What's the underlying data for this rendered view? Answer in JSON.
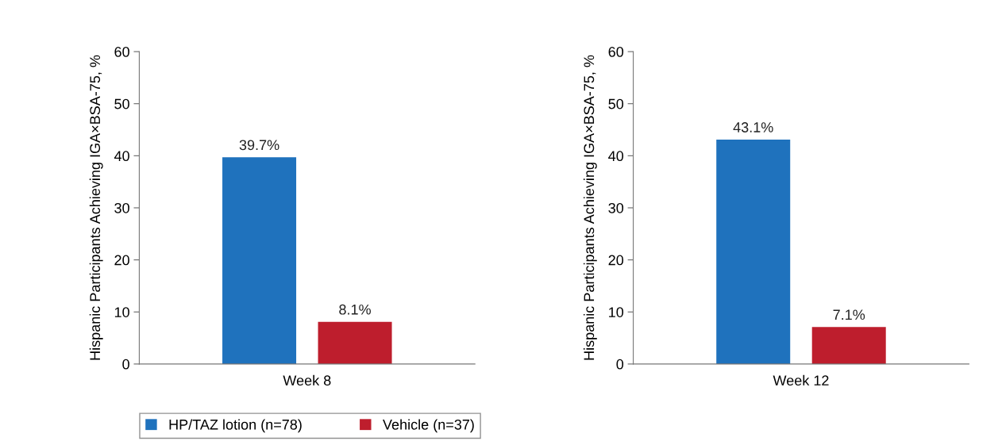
{
  "chart_data": [
    {
      "type": "bar",
      "categories": [
        "Week 8"
      ],
      "ylabel": "Hispanic Participants Achieving IGA×BSA-75, %",
      "ylim": [
        0,
        60
      ],
      "yticks": [
        0,
        10,
        20,
        30,
        40,
        50,
        60
      ],
      "legend": "bottom left",
      "series": [
        {
          "name": "HP/TAZ lotion (n=78)",
          "color": "#1f72bd",
          "values": [
            39.7
          ],
          "value_labels": [
            "39.7%"
          ]
        },
        {
          "name": "Vehicle (n=37)",
          "color": "#be1e2d",
          "values": [
            8.1
          ],
          "value_labels": [
            "8.1%"
          ]
        }
      ]
    },
    {
      "type": "bar",
      "categories": [
        "Week 12"
      ],
      "ylabel": "Hispanic Participants Achieving IGA×BSA-75, %",
      "ylim": [
        0,
        60
      ],
      "yticks": [
        0,
        10,
        20,
        30,
        40,
        50,
        60
      ],
      "series": [
        {
          "color": "#1f72bd",
          "values": [
            43.1
          ],
          "value_labels": [
            "43.1%"
          ]
        },
        {
          "color": "#be1e2d",
          "values": [
            7.1
          ],
          "value_labels": [
            "7.1%"
          ]
        }
      ]
    }
  ]
}
